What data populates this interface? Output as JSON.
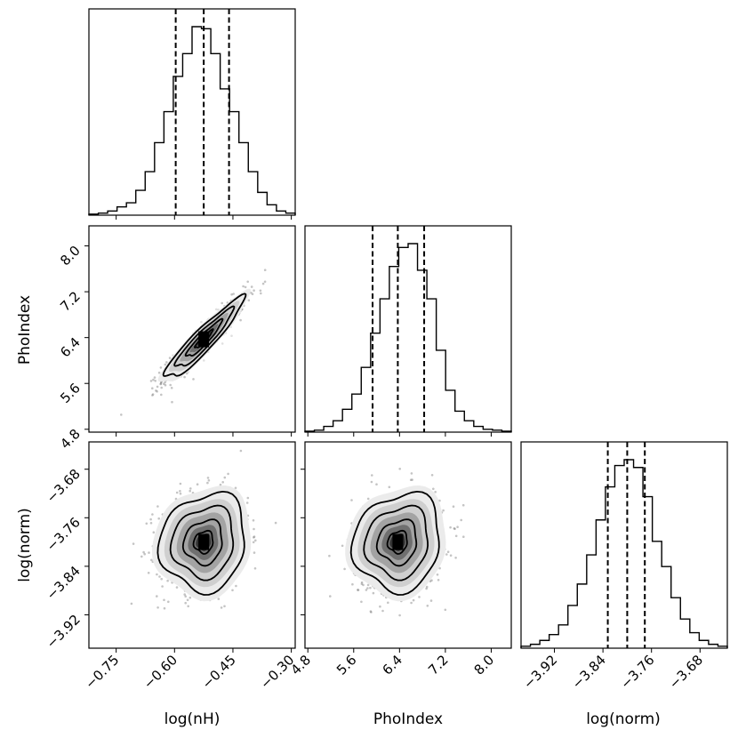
{
  "chart_data": {
    "type": "corner",
    "parameters": [
      {
        "name": "log(nH)",
        "label": "log(nH)",
        "range": [
          -0.82,
          -0.29
        ],
        "ticks": [
          -0.75,
          -0.6,
          -0.45,
          -0.3
        ],
        "tick_labels": [
          "−0.75",
          "−0.60",
          "−0.45",
          "−0.30"
        ],
        "quantiles": [
          -0.597,
          -0.525,
          -0.46
        ]
      },
      {
        "name": "PhoIndex",
        "label": "PhoIndex",
        "range": [
          4.75,
          8.35
        ],
        "ticks": [
          4.8,
          5.6,
          6.4,
          7.2,
          8.0
        ],
        "tick_labels": [
          "4.8",
          "5.6",
          "6.4",
          "7.2",
          "8.0"
        ],
        "quantiles": [
          5.93,
          6.37,
          6.83
        ]
      },
      {
        "name": "log(norm)",
        "label": "log(norm)",
        "range": [
          -3.975,
          -3.635
        ],
        "ticks": [
          -3.92,
          -3.84,
          -3.76,
          -3.68
        ],
        "tick_labels": [
          "−3.92",
          "−3.84",
          "−3.76",
          "−3.68"
        ],
        "quantiles": [
          -3.832,
          -3.8,
          -3.771
        ]
      }
    ],
    "histograms": [
      {
        "parameter": "log(nH)",
        "values": [
          0.5,
          1,
          2,
          4,
          6,
          12,
          21,
          35,
          50,
          67,
          78,
          91,
          90,
          78,
          61,
          50,
          35,
          21,
          11,
          5,
          2,
          1
        ]
      },
      {
        "parameter": "PhoIndex",
        "values": [
          0.5,
          1,
          3,
          6,
          12,
          20,
          34,
          52,
          70,
          87,
          97,
          99,
          85,
          70,
          43,
          22,
          11,
          6,
          3,
          1.5,
          1,
          0.5
        ]
      },
      {
        "parameter": "log(norm)",
        "values": [
          1,
          2,
          4,
          7,
          12,
          22,
          33,
          48,
          66,
          83,
          94,
          97,
          93,
          78,
          55,
          42,
          26,
          15,
          8,
          4,
          2,
          1
        ]
      }
    ],
    "joint_panels": [
      {
        "x": "log(nH)",
        "y": "PhoIndex",
        "center": [
          -0.525,
          6.37
        ],
        "std": [
          0.05,
          0.35
        ],
        "correlation": 0.93
      },
      {
        "x": "log(nH)",
        "y": "log(norm)",
        "center": [
          -0.525,
          -3.8
        ],
        "std": [
          0.055,
          0.04
        ],
        "correlation": 0.1
      },
      {
        "x": "PhoIndex",
        "y": "log(norm)",
        "center": [
          6.37,
          -3.8
        ],
        "std": [
          0.38,
          0.04
        ],
        "correlation": 0.1
      }
    ],
    "title": "",
    "grid": false,
    "legend": "none"
  }
}
